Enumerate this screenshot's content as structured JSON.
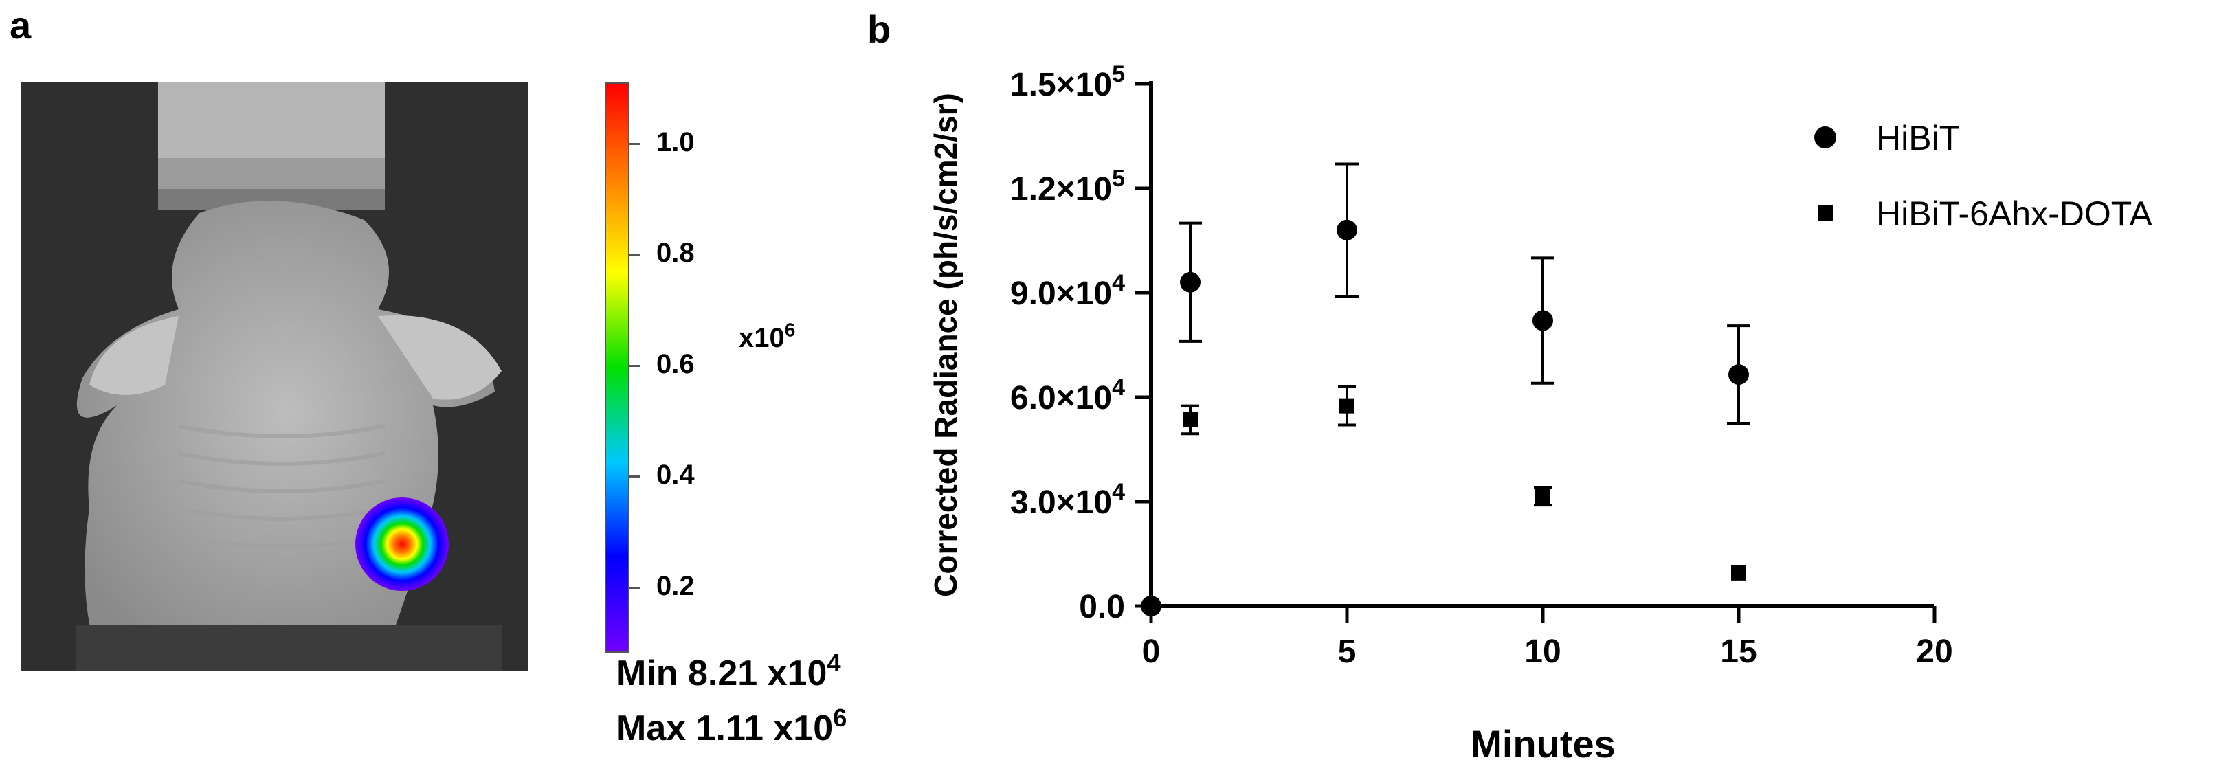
{
  "panel_a": {
    "label": "a",
    "colorbar": {
      "ticks": [
        "1.0",
        "0.8",
        "0.6",
        "0.4",
        "0.2"
      ],
      "tick_values": [
        1.0,
        0.8,
        0.6,
        0.4,
        0.2
      ],
      "range": [
        0.0821,
        1.11
      ],
      "scale_base": "x10",
      "scale_exp": "6",
      "min_text": "Min 8.21 x10",
      "min_exp": "4",
      "max_text": "Max 1.11 x10",
      "max_exp": "6",
      "colors": [
        "#7000ff",
        "#0000ff",
        "#00c8ff",
        "#00e000",
        "#ffff00",
        "#ff8000",
        "#ff0000"
      ]
    }
  },
  "panel_b": {
    "label": "b"
  },
  "chart_data": {
    "type": "scatter",
    "xlabel": "Minutes",
    "ylabel": "Corrected Radiance (ph/s/cm2/sr)",
    "xlim": [
      0,
      20
    ],
    "ylim": [
      0,
      150000
    ],
    "x_ticks": [
      "0",
      "5",
      "10",
      "15",
      "20"
    ],
    "y_ticks": [
      {
        "value": 0,
        "base": "0.0",
        "exp": ""
      },
      {
        "value": 30000,
        "base": "3.0×10",
        "exp": "4"
      },
      {
        "value": 60000,
        "base": "6.0×10",
        "exp": "4"
      },
      {
        "value": 90000,
        "base": "9.0×10",
        "exp": "4"
      },
      {
        "value": 120000,
        "base": "1.2×10",
        "exp": "5"
      },
      {
        "value": 150000,
        "base": "1.5×10",
        "exp": "5"
      }
    ],
    "legend_position": "top-right",
    "grid": false,
    "series": [
      {
        "name": "HiBiT",
        "marker": "circle",
        "x": [
          0,
          1,
          5,
          10,
          15
        ],
        "y": [
          0,
          93000,
          108000,
          82000,
          66500
        ],
        "err": [
          0,
          17000,
          19000,
          18000,
          14000
        ]
      },
      {
        "name": "HiBiT-6Ahx-DOTA",
        "marker": "square",
        "x": [
          0,
          1,
          5,
          10,
          15
        ],
        "y": [
          0,
          53500,
          57500,
          31500,
          9500
        ],
        "err": [
          0,
          4000,
          5500,
          2500,
          0
        ]
      }
    ]
  }
}
